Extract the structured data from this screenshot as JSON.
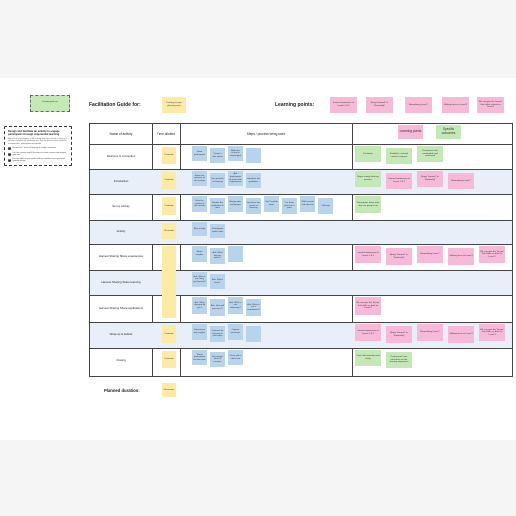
{
  "header": {
    "title": "Facilitation Guide for:",
    "title_note": "Training on your planning area",
    "learning_points_label": "Learning points:",
    "learning_points": [
      "Internal awareness of Levels 1 & 2",
      "Being \"Internal\" or \"Externally\"",
      "Normalizing Level 7",
      "Shifting focus to Level 3",
      "We can give the 'lesson' that shifts us back to Level 3"
    ]
  },
  "corner_note": "Facilitation guide note",
  "intro_card": {
    "title": "Design and facilitate an activity to engage participants through experiential learning",
    "paragraph": "Map out what will happen in the activity, from start to finish, how long it will take and what the takeaways are. Use the board to plan a balance of explanation, participation and debrief.",
    "steps": [
      "Review the 7 levels of listening & analysis exercises",
      "Use the sections and fill the steps to create content and analyze your own.",
      "Use the tables in your guide while you facilitate the experiential learning activity"
    ]
  },
  "table": {
    "col_activity": "Name of activity",
    "col_time": "Time allotted",
    "col_steps": "Steps / process being used",
    "lp_header_notes": [
      "Learning points",
      "Specific outcomes"
    ],
    "rows": [
      {
        "label": "Welcome & connection",
        "time": "5 minutes",
        "steps": [
          "Greet participants",
          "Create a safe space",
          "Make the check-in meaningful",
          ""
        ],
        "outcomes": [
          {
            "c": "g",
            "t": "Facilitator"
          },
          {
            "c": "g",
            "t": "Establish a shared context / purpose"
          },
          {
            "c": "g",
            "t": "Participants feel comfortable and welcomed"
          }
        ]
      },
      {
        "label": "Introduction",
        "time": "5 minutes",
        "steps": [
          "Share the purpose of the activity",
          "Set up levels of listening",
          "Ask participants to share their experiences",
          "Introduce the guidelines"
        ],
        "outcomes": [
          {
            "c": "g",
            "t": "Begin seeing listening practice"
          },
          {
            "c": "p",
            "t": "Internal awareness of Levels 1 & 2"
          },
          {
            "c": "p",
            "t": "Being \"Internal\" or \"Externally\""
          },
          {
            "c": "p",
            "t": "Normalizing Level 7"
          }
        ]
      },
      {
        "label": "Set up activity",
        "time": "5 minutes",
        "steps": [
          "Give the context of the activity",
          "Explain the guidelines & roles",
          "Assign pairs and groups",
          "Introduce the levels of listening",
          "Set 3 minute timer",
          "Let them practice in pairs",
          "Walk around and observe",
          "Call time"
        ],
        "outcomes": [
          {
            "c": "g",
            "t": "Participants know what they are going to do"
          }
        ]
      },
      {
        "label": "Activity",
        "time": "15 minutes",
        "steps": [
          "Run activity",
          "Participants switch roles"
        ],
        "outcomes": []
      },
      {
        "label": "Harvest Sharing Share experiences",
        "time": "",
        "steps": [
          "Share insights",
          "Ask: What did you notice?",
          ""
        ],
        "outcomes": [
          {
            "c": "p",
            "t": "Internal awareness of Levels 1 & 2"
          },
          {
            "c": "p",
            "t": "Being \"Internal\" or \"Externally\""
          },
          {
            "c": "p",
            "t": "Normalizing Level 7"
          },
          {
            "c": "p",
            "t": "Shifting focus to Level 3"
          },
          {
            "c": "p",
            "t": "We can give the 'lesson' that shifts us back to Level 3"
          }
        ]
      },
      {
        "label": "Harvest Sharing Share learning",
        "time": "5 minutes",
        "steps": [
          "Ask: What is one thing you learned?",
          "Ask: Which level?"
        ],
        "outcomes": []
      },
      {
        "label": "Harvest Sharing Share applications",
        "time": "",
        "steps": [
          "Ask: What changed for you?",
          "Ask: How will you use it?",
          "Ask: What is one takeaway?",
          "Ask: What is your commitment?"
        ],
        "outcomes": [
          {
            "c": "p",
            "t": "We can give the 'lesson' that shifts us back to Level 3"
          }
        ]
      },
      {
        "label": "Wrap-up & debrief",
        "time": "5 minutes",
        "steps": [
          "Summarize key insights",
          "Connect the learning to next steps",
          "Capture outcomes",
          ""
        ],
        "outcomes": [
          {
            "c": "p",
            "t": "Internal awareness of Levels 1 & 2"
          },
          {
            "c": "p",
            "t": "Being \"Internal\" or \"Externally\""
          },
          {
            "c": "p",
            "t": "Normalizing Level 7"
          },
          {
            "c": "p",
            "t": "Shifting focus to Level 3"
          },
          {
            "c": "p",
            "t": "We can give the 'lesson' that shifts us back to Level 3"
          }
        ]
      },
      {
        "label": "Closing",
        "time": "5 minutes",
        "steps": [
          "Thank participants for their time",
          "Encourage them to practice",
          "Close with a check-out"
        ],
        "outcomes": [
          {
            "c": "g",
            "t": "Close with intention and clarity"
          },
          {
            "c": "g",
            "t": "Participants have reflections on the learning experience"
          }
        ]
      }
    ]
  },
  "planned_duration_label": "Planned duration:",
  "planned_duration_value": "50 minutes"
}
